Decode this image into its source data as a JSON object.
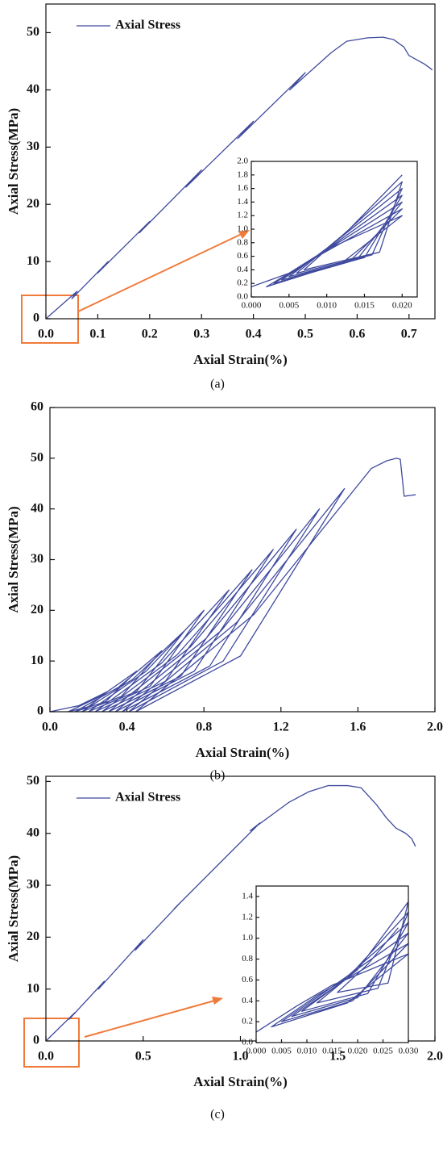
{
  "chart_data": [
    {
      "type": "line",
      "caption": "(a)",
      "xlabel": "Axial Strain(%)",
      "ylabel": "Axial Stress(MPa)",
      "legend": "upper left",
      "xlim": [
        0,
        0.75
      ],
      "ylim": [
        0,
        55
      ],
      "xticks": [
        {
          "value": 0,
          "label": "0.0"
        },
        0.1,
        0.2,
        0.3,
        0.4,
        0.5,
        0.6,
        0.7
      ],
      "yticks": [
        0,
        10,
        20,
        30,
        40,
        50
      ],
      "series": [
        {
          "name": "Axial Stress",
          "color": "#3f4a9e",
          "x": [
            0,
            0.06,
            0.05,
            0.12,
            0.1,
            0.2,
            0.18,
            0.3,
            0.27,
            0.4,
            0.37,
            0.5,
            0.47,
            0.55,
            0.58,
            0.62,
            0.65,
            0.67,
            0.69,
            0.7,
            0.72,
            0.73,
            0.745
          ],
          "values": [
            0,
            4.8,
            3.5,
            10,
            8,
            17,
            15,
            26,
            23,
            34.5,
            31.5,
            43,
            40,
            46.5,
            48.5,
            49.1,
            49.2,
            48.8,
            47.5,
            46,
            45,
            44.5,
            43.5
          ]
        }
      ]
    },
    {
      "type": "line",
      "xlim": [
        0,
        0.022
      ],
      "ylim": [
        0,
        2.0
      ],
      "xticks": [
        {
          "value": 0,
          "label": "0.000"
        },
        0.005,
        {
          "value": 0.01,
          "label": "0.010"
        },
        0.015,
        {
          "value": 0.02,
          "label": "0.020"
        }
      ],
      "yticks": [
        {
          "value": 0,
          "label": "0.0"
        },
        0.2,
        0.4,
        0.6,
        0.8,
        {
          "value": 1,
          "label": "1.0"
        },
        1.2,
        1.4,
        1.6,
        1.8,
        {
          "value": 2,
          "label": "2.0"
        }
      ],
      "series": [
        {
          "color": "#3f4a9e",
          "x": [
            0,
            0.005,
            0.01,
            0.02,
            0.012,
            0.002,
            0.008,
            0.02,
            0.013,
            0.003,
            0.009,
            0.02,
            0.014,
            0.004,
            0.01,
            0.02,
            0.015,
            0.005,
            0.011,
            0.02,
            0.016,
            0.006,
            0.012,
            0.02,
            0.017,
            0.007,
            0.013,
            0.02
          ],
          "values": [
            0.15,
            0.35,
            0.7,
            1.2,
            0.5,
            0.15,
            0.55,
            1.3,
            0.52,
            0.2,
            0.62,
            1.4,
            0.55,
            0.25,
            0.7,
            1.5,
            0.58,
            0.3,
            0.8,
            1.6,
            0.62,
            0.35,
            0.9,
            1.7,
            0.66,
            0.4,
            1.0,
            1.8
          ]
        }
      ]
    },
    {
      "type": "line",
      "caption": "(b)",
      "xlabel": "Axial Strain(%)",
      "ylabel": "Axial Stress(MPa)",
      "xlim": [
        0,
        2.0
      ],
      "ylim": [
        0,
        60
      ],
      "xticks": [
        {
          "value": 0,
          "label": "0.0"
        },
        0.4,
        0.8,
        1.2,
        1.6,
        {
          "value": 2,
          "label": "2.0"
        }
      ],
      "yticks": [
        0,
        10,
        20,
        30,
        40,
        50,
        60
      ],
      "series": [
        {
          "color": "#3f4a9e",
          "x": [
            0,
            0.15,
            0.3,
            0.2,
            0.095,
            0.27,
            0.45,
            0.29,
            0.13,
            0.355,
            0.58,
            0.37,
            0.165,
            0.43,
            0.7,
            0.45,
            0.2,
            0.5,
            0.8,
            0.52,
            0.235,
            0.58,
            0.93,
            0.6,
            0.27,
            0.66,
            1.05,
            0.68,
            0.305,
            0.73,
            1.16,
            0.75,
            0.34,
            0.81,
            1.28,
            0.83,
            0.375,
            0.89,
            1.4,
            0.9,
            0.41,
            0.97,
            1.53,
            0.99,
            0.445,
            1.06,
            1.67,
            1.75,
            1.8,
            1.82,
            1.84,
            1.86,
            1.9
          ],
          "values": [
            0,
            1.2,
            4,
            1,
            0,
            3.2,
            8,
            2,
            0,
            4.8,
            12,
            3,
            0,
            6.4,
            16,
            4,
            0,
            8,
            20,
            5,
            0,
            9.6,
            24,
            6,
            0,
            11.2,
            28,
            7,
            0,
            12.8,
            32,
            8,
            0,
            14.4,
            36,
            9,
            0,
            16,
            40,
            10,
            0,
            17.6,
            44,
            11,
            0,
            19.2,
            48,
            49.5,
            50,
            49.8,
            42.5,
            42.6,
            42.8
          ]
        }
      ]
    },
    {
      "type": "line",
      "caption": "(c)",
      "xlabel": "Axial Strain(%)",
      "ylabel": "Axial Stress(MPa)",
      "legend": "upper left",
      "xlim": [
        0,
        2.0
      ],
      "ylim": [
        0,
        51
      ],
      "xticks": [
        {
          "value": 0,
          "label": "0.0"
        },
        0.5,
        {
          "value": 1,
          "label": "1.0"
        },
        1.5,
        {
          "value": 2,
          "label": "2.0"
        }
      ],
      "yticks": [
        0,
        10,
        20,
        30,
        40,
        50
      ],
      "series": [
        {
          "name": "Axial Stress",
          "color": "#3f4a9e",
          "x": [
            0,
            0.15,
            0.12,
            0.3,
            0.27,
            0.5,
            0.46,
            0.7,
            0.66,
            0.9,
            0.86,
            1.1,
            1.05,
            1.25,
            1.35,
            1.45,
            1.55,
            1.62,
            1.7,
            1.75,
            1.8,
            1.85,
            1.88,
            1.9
          ],
          "values": [
            0,
            5.5,
            4.2,
            11.5,
            10,
            19.5,
            17.5,
            27,
            25.5,
            34.5,
            33,
            42,
            40.5,
            46,
            48,
            49.2,
            49.2,
            48.8,
            45.5,
            43,
            41,
            40,
            39,
            37.5
          ]
        }
      ]
    },
    {
      "type": "line",
      "xlim": [
        0,
        0.03
      ],
      "ylim": [
        0,
        1.5
      ],
      "xticks": [
        {
          "value": 0,
          "label": "0.000"
        },
        0.005,
        {
          "value": 0.01,
          "label": "0.010"
        },
        0.015,
        {
          "value": 0.02,
          "label": "0.020"
        },
        0.025,
        {
          "value": 0.03,
          "label": "0.030"
        }
      ],
      "yticks": [
        {
          "value": 0,
          "label": "0.0"
        },
        0.2,
        0.4,
        0.6,
        0.8,
        {
          "value": 1,
          "label": "1.0"
        },
        1.2,
        1.4
      ],
      "series": [
        {
          "color": "#3f4a9e",
          "x": [
            0,
            0.008,
            0.015,
            0.03,
            0.018,
            0.003,
            0.012,
            0.03,
            0.019,
            0.005,
            0.014,
            0.03,
            0.02,
            0.007,
            0.016,
            0.03,
            0.022,
            0.009,
            0.018,
            0.03,
            0.024,
            0.012,
            0.02,
            0.03,
            0.026,
            0.016,
            0.022,
            0.028
          ],
          "values": [
            0.1,
            0.35,
            0.55,
            0.85,
            0.38,
            0.15,
            0.45,
            0.95,
            0.4,
            0.2,
            0.5,
            1.05,
            0.43,
            0.25,
            0.55,
            1.15,
            0.47,
            0.3,
            0.62,
            1.25,
            0.52,
            0.38,
            0.7,
            1.35,
            0.57,
            0.48,
            0.75,
            1.1
          ]
        }
      ]
    }
  ]
}
